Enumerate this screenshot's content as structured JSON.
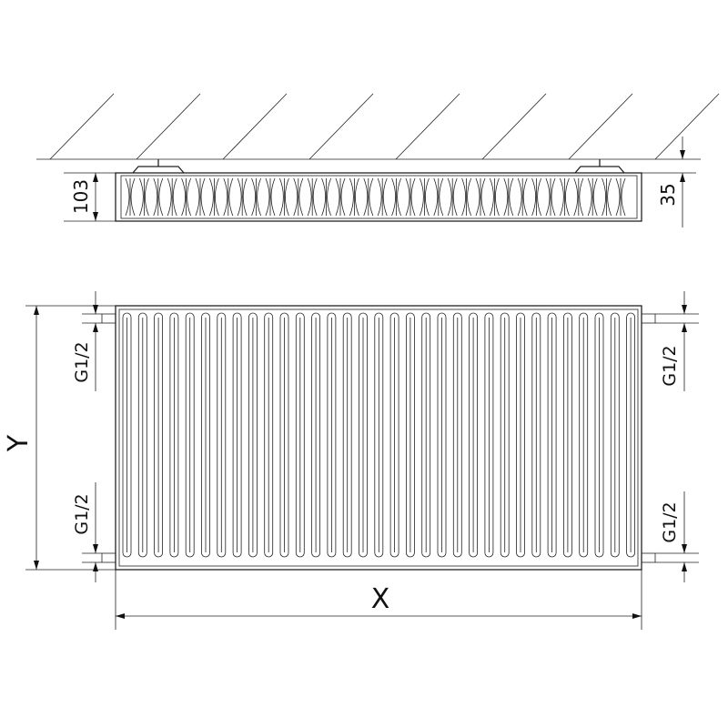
{
  "side_view": {
    "height_label": "103",
    "wall_gap_label": "35"
  },
  "front_view": {
    "height_label": "Y",
    "width_label": "X",
    "connections": {
      "left_top": "G1/2",
      "left_bottom": "G1/2",
      "right_top": "G1/2",
      "right_bottom": "G1/2"
    }
  },
  "colors": {
    "line": "#222222",
    "background": "#ffffff"
  }
}
